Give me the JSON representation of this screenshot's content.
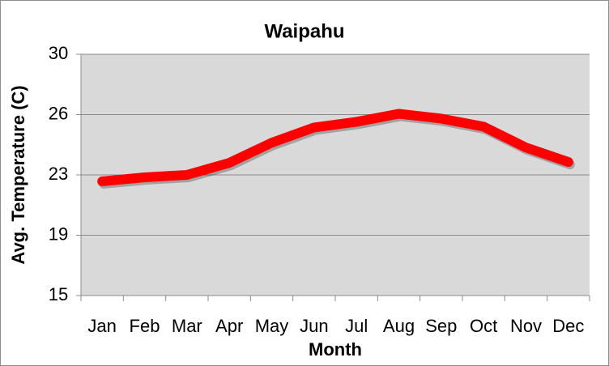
{
  "chart_data": {
    "type": "line",
    "title": "Waipahu",
    "x_label": "Month",
    "y_label": "Avg. Temperature (C)",
    "categories": [
      "Jan",
      "Feb",
      "Mar",
      "Apr",
      "May",
      "Jun",
      "Jul",
      "Aug",
      "Sep",
      "Oct",
      "Nov",
      "Dec"
    ],
    "series": [
      {
        "name": "Avg. Temperature",
        "color": "#ff0000",
        "values": [
          22.1,
          22.35,
          22.5,
          23.25,
          24.5,
          25.45,
          25.8,
          26.3,
          26.0,
          25.5,
          24.2,
          23.3
        ]
      }
    ],
    "ylim": [
      15,
      30
    ],
    "yticks": [
      15,
      {
        "value": 18.75,
        "label": "19"
      },
      {
        "value": 22.5,
        "label": "23"
      },
      {
        "value": 26.25,
        "label": "26"
      },
      30
    ],
    "grid": true
  }
}
